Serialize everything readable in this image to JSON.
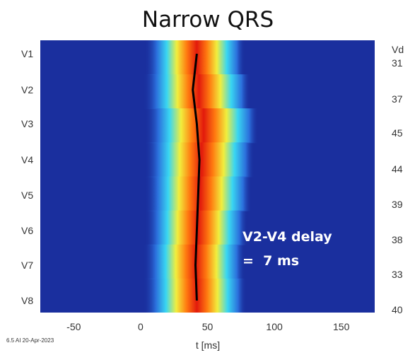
{
  "chart_data": {
    "type": "heatmap",
    "title": "Narrow QRS",
    "xlabel": "t  [ms]",
    "xlim": [
      -75,
      175
    ],
    "xticks": [
      -50,
      0,
      50,
      100,
      150
    ],
    "xtick_labels": [
      "-50",
      "0",
      "50",
      "100",
      "150"
    ],
    "leads": [
      "V1",
      "V2",
      "V3",
      "V4",
      "V5",
      "V6",
      "V7",
      "V8"
    ],
    "vd_header": "Vd",
    "vd_values": [
      "31",
      "37",
      "45",
      "44",
      "39",
      "38",
      "33",
      "40"
    ],
    "activation_center_ms": [
      42,
      39,
      42,
      44,
      43,
      42,
      41,
      42
    ],
    "activation_right_edge_ms": [
      58,
      62,
      68,
      65,
      63,
      60,
      58,
      59
    ],
    "activation_left_edge_ms": [
      25,
      24,
      25,
      25,
      25,
      25,
      24,
      24
    ],
    "annotation": [
      "V2-V4 delay",
      "=  7 ms"
    ],
    "version_text": "6.5 AI 20-Apr-2023",
    "colors": {
      "background": "#1a2f9e",
      "center_line": "#000000",
      "annotation_text": "#ffffff"
    }
  }
}
